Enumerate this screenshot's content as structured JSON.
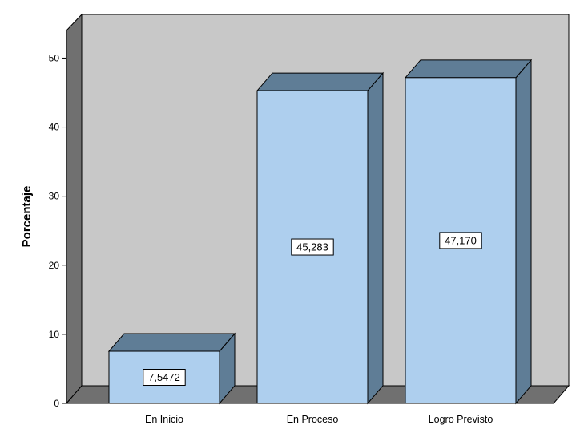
{
  "chart_data": {
    "type": "bar",
    "style": "3d",
    "categories": [
      "En Inicio",
      "En Proceso",
      "Logro Previsto"
    ],
    "values": [
      7.5472,
      45.283,
      47.17
    ],
    "data_labels": [
      "7,5472",
      "45,283",
      "47,170"
    ],
    "ylabel": "Porcentaje",
    "xlabel": "",
    "ylim": [
      0,
      54
    ],
    "yticks": [
      0,
      10,
      20,
      30,
      40,
      50
    ],
    "grid": false,
    "legend": "none",
    "colors": {
      "bar_front": "#aecfee",
      "bar_top": "#5f7d96",
      "bar_side": "#5f7d96",
      "back_wall": "#c8c8c8",
      "side_wall": "#707070",
      "floor": "#707070"
    }
  }
}
